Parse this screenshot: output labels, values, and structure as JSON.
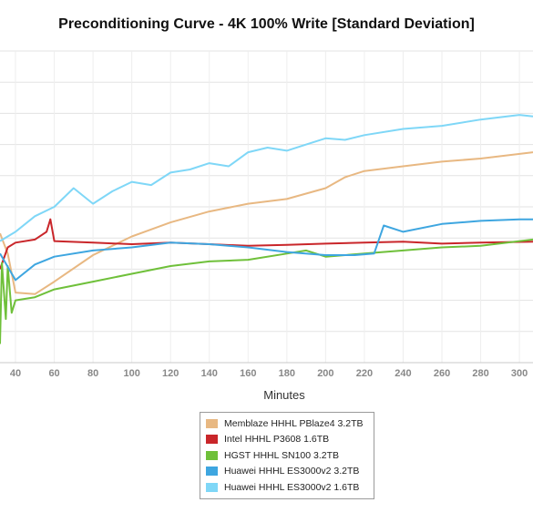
{
  "chart_data": {
    "type": "line",
    "title": "Preconditioning Curve - 4K 100% Write [Standard Deviation]",
    "xlabel": "Minutes",
    "ylabel": "",
    "xlim": [
      32,
      307
    ],
    "ylim": [
      0,
      10
    ],
    "x_ticks": [
      40,
      60,
      80,
      100,
      120,
      140,
      160,
      180,
      200,
      220,
      240,
      260,
      280,
      300
    ],
    "y_tick_labels_visible": false,
    "grid": true,
    "legend_position": "bottom-center",
    "series": [
      {
        "name": "Memblaze HHHL PBlaze4 3.2TB",
        "color": "#e8b882",
        "points": [
          [
            32,
            4.15
          ],
          [
            36,
            3.5
          ],
          [
            40,
            2.25
          ],
          [
            50,
            2.2
          ],
          [
            60,
            2.6
          ],
          [
            80,
            3.45
          ],
          [
            100,
            4.05
          ],
          [
            120,
            4.5
          ],
          [
            140,
            4.85
          ],
          [
            160,
            5.1
          ],
          [
            180,
            5.25
          ],
          [
            200,
            5.6
          ],
          [
            210,
            5.95
          ],
          [
            220,
            6.15
          ],
          [
            240,
            6.3
          ],
          [
            260,
            6.45
          ],
          [
            280,
            6.55
          ],
          [
            307,
            6.75
          ]
        ]
      },
      {
        "name": "Intel HHHL P3608 1.6TB",
        "color": "#c9262a",
        "points": [
          [
            32,
            3.0
          ],
          [
            36,
            3.7
          ],
          [
            40,
            3.85
          ],
          [
            50,
            3.95
          ],
          [
            56,
            4.2
          ],
          [
            58,
            4.6
          ],
          [
            60,
            3.9
          ],
          [
            80,
            3.85
          ],
          [
            100,
            3.8
          ],
          [
            120,
            3.85
          ],
          [
            140,
            3.8
          ],
          [
            160,
            3.75
          ],
          [
            180,
            3.78
          ],
          [
            200,
            3.82
          ],
          [
            220,
            3.85
          ],
          [
            240,
            3.88
          ],
          [
            260,
            3.82
          ],
          [
            280,
            3.85
          ],
          [
            307,
            3.88
          ]
        ]
      },
      {
        "name": "HGST HHHL SN100 3.2TB",
        "color": "#6fc03a",
        "points": [
          [
            32,
            0.6
          ],
          [
            33,
            3.2
          ],
          [
            35,
            1.4
          ],
          [
            36,
            3.1
          ],
          [
            38,
            1.6
          ],
          [
            40,
            2.0
          ],
          [
            50,
            2.1
          ],
          [
            60,
            2.35
          ],
          [
            80,
            2.6
          ],
          [
            100,
            2.85
          ],
          [
            120,
            3.1
          ],
          [
            140,
            3.25
          ],
          [
            160,
            3.3
          ],
          [
            180,
            3.5
          ],
          [
            190,
            3.6
          ],
          [
            200,
            3.4
          ],
          [
            220,
            3.5
          ],
          [
            240,
            3.6
          ],
          [
            260,
            3.7
          ],
          [
            280,
            3.75
          ],
          [
            307,
            3.95
          ]
        ]
      },
      {
        "name": "Huawei HHHL ES3000v2 3.2TB",
        "color": "#3ea6e0",
        "points": [
          [
            32,
            3.5
          ],
          [
            40,
            2.65
          ],
          [
            50,
            3.15
          ],
          [
            60,
            3.4
          ],
          [
            80,
            3.6
          ],
          [
            100,
            3.7
          ],
          [
            120,
            3.85
          ],
          [
            140,
            3.8
          ],
          [
            160,
            3.7
          ],
          [
            180,
            3.55
          ],
          [
            200,
            3.45
          ],
          [
            215,
            3.45
          ],
          [
            225,
            3.5
          ],
          [
            230,
            4.4
          ],
          [
            240,
            4.2
          ],
          [
            260,
            4.45
          ],
          [
            280,
            4.55
          ],
          [
            300,
            4.6
          ],
          [
            307,
            4.6
          ]
        ]
      },
      {
        "name": "Huawei HHHL ES3000v2 1.6TB",
        "color": "#7fd7f7",
        "points": [
          [
            32,
            3.9
          ],
          [
            40,
            4.2
          ],
          [
            50,
            4.7
          ],
          [
            60,
            5.0
          ],
          [
            70,
            5.6
          ],
          [
            80,
            5.1
          ],
          [
            90,
            5.5
          ],
          [
            100,
            5.8
          ],
          [
            110,
            5.7
          ],
          [
            120,
            6.1
          ],
          [
            130,
            6.2
          ],
          [
            140,
            6.4
          ],
          [
            150,
            6.3
          ],
          [
            160,
            6.75
          ],
          [
            170,
            6.9
          ],
          [
            180,
            6.8
          ],
          [
            190,
            7.0
          ],
          [
            200,
            7.2
          ],
          [
            210,
            7.15
          ],
          [
            220,
            7.3
          ],
          [
            240,
            7.5
          ],
          [
            260,
            7.6
          ],
          [
            280,
            7.8
          ],
          [
            300,
            7.95
          ],
          [
            307,
            7.9
          ]
        ]
      }
    ]
  }
}
